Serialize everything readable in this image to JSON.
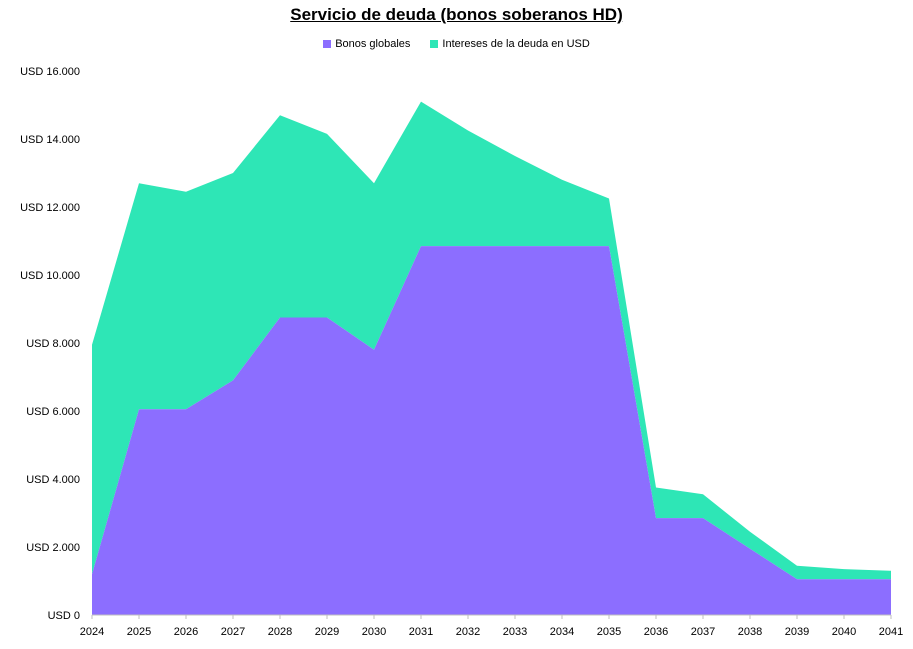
{
  "chart_data": {
    "type": "area",
    "stacked": true,
    "title": "Servicio de deuda (bonos soberanos HD)",
    "x": [
      "2024",
      "2025",
      "2026",
      "2027",
      "2028",
      "2029",
      "2030",
      "2031",
      "2032",
      "2033",
      "2034",
      "2035",
      "2036",
      "2037",
      "2038",
      "2039",
      "2040",
      "2041"
    ],
    "series": [
      {
        "name": "Bonos globales",
        "color": "#8c6eff",
        "values": [
          1200,
          6050,
          6050,
          6900,
          8750,
          8750,
          7800,
          10850,
          10850,
          10850,
          10850,
          10850,
          2850,
          2850,
          1950,
          1050,
          1050,
          1050
        ]
      },
      {
        "name": "Intereses de la deuda en USD",
        "color": "#2ee6b6",
        "values": [
          6750,
          6650,
          6400,
          6100,
          5950,
          5400,
          4900,
          4250,
          3400,
          2650,
          1950,
          1400,
          900,
          700,
          500,
          400,
          300,
          250
        ]
      }
    ],
    "yticks": [
      "USD 0",
      "USD 2.000",
      "USD 4.000",
      "USD 6.000",
      "USD 8.000",
      "USD 10.000",
      "USD 12.000",
      "USD 14.000",
      "USD 16.000"
    ],
    "ylim": [
      0,
      16000
    ],
    "grid": false,
    "legend_position": "top"
  }
}
